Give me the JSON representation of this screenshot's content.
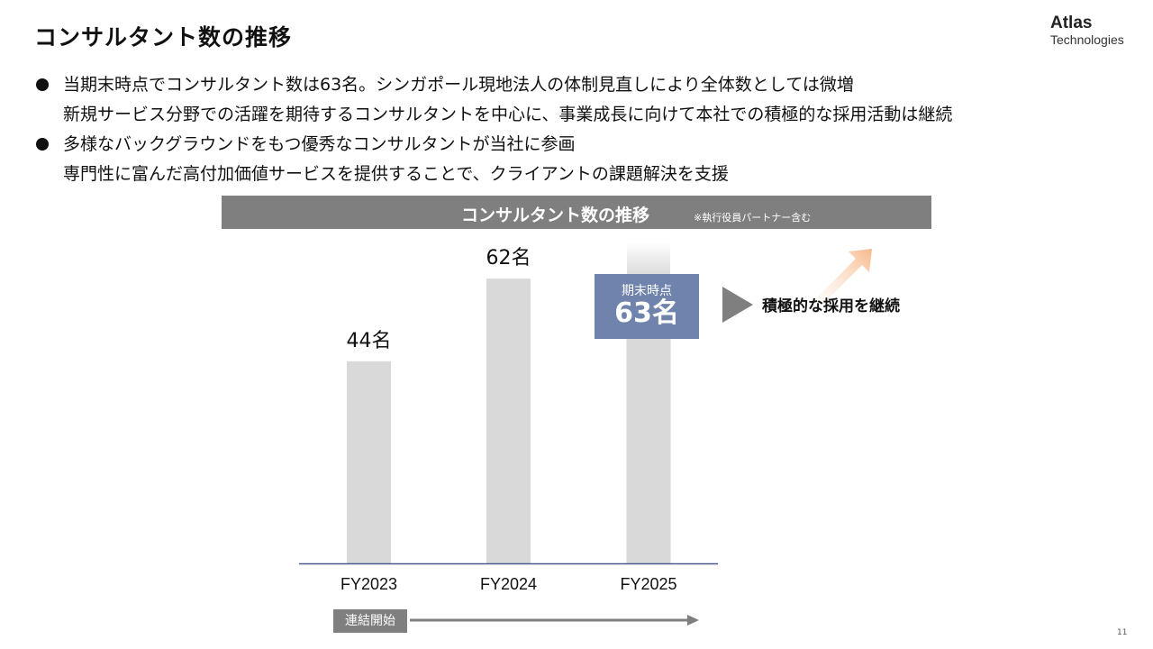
{
  "slide": {
    "title": "コンサルタント数の推移",
    "logo": {
      "name": "Atlas",
      "sub": "Technologies"
    },
    "page_number": "11"
  },
  "bullets": [
    {
      "lines": [
        "当期末時点でコンサルタント数は63名。シンガポール現地法人の体制見直しにより全体数としては微増",
        "新規サービス分野での活躍を期待するコンサルタントを中心に、事業成長に向けて本社での積極的な採用活動は継続"
      ]
    },
    {
      "lines": [
        "多様なバックグラウンドをもつ優秀なコンサルタントが当社に参画",
        "専門性に富んだ高付加価値サービスを提供することで、クライアントの課題解決を支援"
      ]
    }
  ],
  "chart_header": {
    "title": "コンサルタント数の推移",
    "note": "※執行役員パートナー含む"
  },
  "chart_data": {
    "type": "bar",
    "title": "コンサルタント数の推移",
    "categories": [
      "FY2023",
      "FY2024",
      "FY2025"
    ],
    "values": [
      44,
      62,
      63
    ],
    "data_labels": [
      "44名",
      "62名",
      ""
    ],
    "unit": "名",
    "ylim": [
      0,
      63
    ],
    "grid": false,
    "colors": {
      "bar": "#d9d9d9",
      "axis": "#4a5a8a",
      "callout": "#6f83ad",
      "growth_arrow": "#f7b98c"
    }
  },
  "callout": {
    "label": "期末時点",
    "value": "63名"
  },
  "hiring_note": "積極的な採用を継続",
  "consolidation": {
    "label": "連結開始"
  }
}
